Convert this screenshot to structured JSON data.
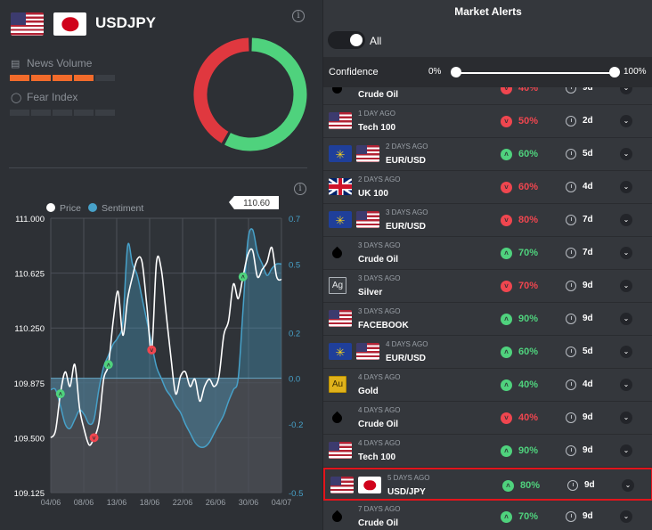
{
  "header": {
    "pair": "USDJPY",
    "news_volume_label": "News Volume",
    "fear_index_label": "Fear Index",
    "news_volume_level": 4,
    "fear_index_level": 0,
    "meter_segments": 5,
    "info_glyph": "i"
  },
  "donut": {
    "red_fraction": 0.42,
    "green_fraction": 0.58,
    "red_color": "#e0383f",
    "green_color": "#4fd27d"
  },
  "chart_data": {
    "type": "line",
    "legend": [
      "Price",
      "Sentiment"
    ],
    "price_label": "110.60",
    "x_ticks": [
      "04/06",
      "08/06",
      "13/06",
      "18/06",
      "22/06",
      "26/06",
      "30/06",
      "04/07"
    ],
    "y_left_ticks": [
      "111.000",
      "110.625",
      "110.250",
      "109.875",
      "109.500",
      "109.125"
    ],
    "y_left_range": [
      109.125,
      111.0
    ],
    "y_right_ticks": [
      "0.7",
      "0.5",
      "0.2",
      "0.0",
      "-0.2",
      "-0.5"
    ],
    "y_right_range": [
      -0.5,
      0.7
    ],
    "series": [
      {
        "name": "Price",
        "color": "#ffffff",
        "values": [
          109.5,
          109.55,
          109.8,
          109.95,
          109.85,
          110.0,
          109.7,
          109.55,
          109.45,
          109.5,
          109.6,
          109.9,
          110.0,
          110.3,
          110.5,
          110.2,
          110.45,
          110.6,
          110.72,
          110.7,
          110.4,
          110.1,
          110.7,
          110.65,
          110.35,
          110.05,
          109.8,
          109.92,
          109.95,
          109.85,
          109.9,
          109.75,
          109.85,
          109.9,
          109.85,
          109.92,
          110.2,
          110.3,
          110.55,
          110.45,
          110.6,
          110.75,
          110.78,
          110.6,
          110.65,
          110.7,
          110.8,
          110.6,
          110.58
        ]
      },
      {
        "name": "Sentiment",
        "color": "#47a1c9",
        "values": [
          -0.05,
          -0.05,
          -0.12,
          -0.2,
          -0.22,
          -0.18,
          -0.14,
          -0.16,
          -0.2,
          -0.18,
          -0.05,
          0.05,
          0.1,
          0.15,
          0.18,
          0.25,
          0.58,
          0.5,
          0.45,
          0.35,
          0.25,
          0.15,
          0.05,
          0.0,
          -0.05,
          -0.08,
          -0.12,
          -0.15,
          -0.2,
          -0.24,
          -0.28,
          -0.3,
          -0.3,
          -0.28,
          -0.24,
          -0.2,
          -0.16,
          -0.1,
          -0.05,
          0.0,
          0.3,
          0.6,
          0.65,
          0.55,
          0.5,
          0.45,
          0.48,
          0.5,
          0.5
        ]
      }
    ],
    "markers": [
      {
        "index": 2,
        "series": "Price",
        "direction": "up"
      },
      {
        "index": 9,
        "series": "Price",
        "direction": "down"
      },
      {
        "index": 12,
        "series": "Price",
        "direction": "up"
      },
      {
        "index": 21,
        "series": "Price",
        "direction": "down"
      },
      {
        "index": 40,
        "series": "Price",
        "direction": "up"
      }
    ]
  },
  "alerts": {
    "title": "Market Alerts",
    "toggle_label": "All",
    "confidence_label": "Confidence",
    "confidence_min": "0%",
    "confidence_max": "100%",
    "rows": [
      {
        "time": "",
        "name": "Crude Oil",
        "flags": [
          "oil"
        ],
        "direction": "down",
        "pct": "40%",
        "dur": "9d",
        "partial": true
      },
      {
        "time": "1 DAY AGO",
        "name": "Tech 100",
        "flags": [
          "us"
        ],
        "direction": "down",
        "pct": "50%",
        "dur": "2d"
      },
      {
        "time": "2 DAYS AGO",
        "name": "EUR/USD",
        "flags": [
          "eu",
          "us"
        ],
        "direction": "up",
        "pct": "60%",
        "dur": "5d"
      },
      {
        "time": "2 DAYS AGO",
        "name": "UK 100",
        "flags": [
          "uk"
        ],
        "direction": "down",
        "pct": "60%",
        "dur": "4d"
      },
      {
        "time": "3 DAYS AGO",
        "name": "EUR/USD",
        "flags": [
          "eu",
          "us"
        ],
        "direction": "down",
        "pct": "80%",
        "dur": "7d"
      },
      {
        "time": "3 DAYS AGO",
        "name": "Crude Oil",
        "flags": [
          "oil"
        ],
        "direction": "up",
        "pct": "70%",
        "dur": "7d"
      },
      {
        "time": "3 DAYS AGO",
        "name": "Silver",
        "flags": [
          "ag"
        ],
        "direction": "down",
        "pct": "70%",
        "dur": "9d"
      },
      {
        "time": "3 DAYS AGO",
        "name": "FACEBOOK",
        "flags": [
          "us"
        ],
        "direction": "up",
        "pct": "90%",
        "dur": "9d"
      },
      {
        "time": "4 DAYS AGO",
        "name": "EUR/USD",
        "flags": [
          "eu",
          "us"
        ],
        "direction": "up",
        "pct": "60%",
        "dur": "5d"
      },
      {
        "time": "4 DAYS AGO",
        "name": "Gold",
        "flags": [
          "au"
        ],
        "direction": "up",
        "pct": "40%",
        "dur": "4d"
      },
      {
        "time": "4 DAYS AGO",
        "name": "Crude Oil",
        "flags": [
          "oil"
        ],
        "direction": "down",
        "pct": "40%",
        "dur": "9d"
      },
      {
        "time": "4 DAYS AGO",
        "name": "Tech 100",
        "flags": [
          "us"
        ],
        "direction": "up",
        "pct": "90%",
        "dur": "9d"
      },
      {
        "time": "5 DAYS AGO",
        "name": "USD/JPY",
        "flags": [
          "us",
          "jp"
        ],
        "direction": "up",
        "pct": "80%",
        "dur": "9d",
        "selected": true
      },
      {
        "time": "7 DAYS AGO",
        "name": "Crude Oil",
        "flags": [
          "oil"
        ],
        "direction": "up",
        "pct": "70%",
        "dur": "9d"
      }
    ],
    "symbols": {
      "ag": "Ag",
      "au": "Au"
    }
  }
}
